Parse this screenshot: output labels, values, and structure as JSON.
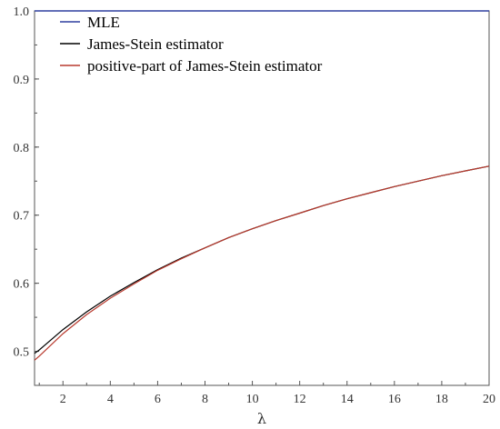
{
  "chart_data": {
    "type": "line",
    "xlabel": "λ",
    "ylabel": "",
    "xlim": [
      0.8,
      20
    ],
    "ylim": [
      0.45,
      1.0
    ],
    "xticks": [
      2,
      4,
      6,
      8,
      10,
      12,
      14,
      16,
      18,
      20
    ],
    "yticks": [
      0.5,
      0.6,
      0.7,
      0.8,
      0.9,
      1.0
    ],
    "xtick_labels": [
      "2",
      "4",
      "6",
      "8",
      "10",
      "12",
      "14",
      "16",
      "18",
      "20"
    ],
    "ytick_labels": [
      "0.5",
      "0.6",
      "0.7",
      "0.8",
      "0.9",
      "1.0"
    ],
    "grid": false,
    "legend": "top-left",
    "series": [
      {
        "name": "MLE",
        "color": "#2f3f9f",
        "x": [
          0.8,
          20
        ],
        "y": [
          1.0,
          1.0
        ]
      },
      {
        "name": "James-Stein estimator",
        "color": "#000000",
        "x": [
          0.8,
          1,
          2,
          3,
          4,
          5,
          6,
          7,
          8,
          9,
          10,
          11,
          12,
          13,
          14,
          15,
          16,
          17,
          18,
          19,
          20
        ],
        "y": [
          0.497,
          0.502,
          0.532,
          0.558,
          0.581,
          0.601,
          0.62,
          0.637,
          0.652,
          0.667,
          0.68,
          0.692,
          0.703,
          0.714,
          0.724,
          0.733,
          0.742,
          0.75,
          0.758,
          0.765,
          0.772
        ]
      },
      {
        "name": "positive-part of James-Stein estimator",
        "color": "#b83a2e",
        "x": [
          0.8,
          1,
          2,
          3,
          4,
          5,
          6,
          7,
          8,
          9,
          10,
          11,
          12,
          13,
          14,
          15,
          16,
          17,
          18,
          19,
          20
        ],
        "y": [
          0.487,
          0.493,
          0.526,
          0.554,
          0.578,
          0.599,
          0.619,
          0.636,
          0.652,
          0.667,
          0.68,
          0.692,
          0.703,
          0.714,
          0.724,
          0.733,
          0.742,
          0.75,
          0.758,
          0.765,
          0.772
        ]
      }
    ]
  }
}
